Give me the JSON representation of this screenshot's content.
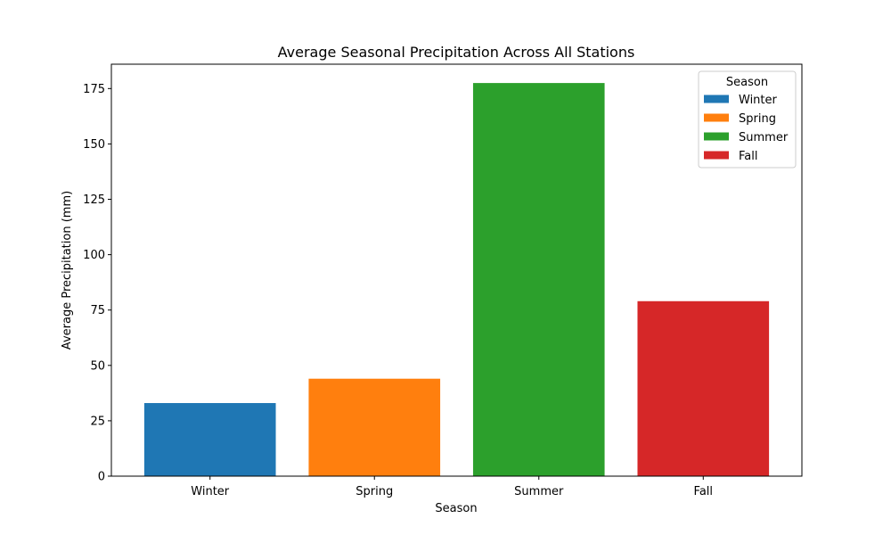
{
  "chart_data": {
    "type": "bar",
    "title": "Average Seasonal Precipitation Across All Stations",
    "xlabel": "Season",
    "ylabel": "Average Precipitation (mm)",
    "categories": [
      "Winter",
      "Spring",
      "Summer",
      "Fall"
    ],
    "values": [
      33,
      44,
      177.5,
      79
    ],
    "colors": [
      "#1f77b4",
      "#ff7f0e",
      "#2ca02c",
      "#d62728"
    ],
    "ylim": [
      0,
      186
    ],
    "yticks": [
      0,
      25,
      50,
      75,
      100,
      125,
      150,
      175
    ],
    "grid": false,
    "legend": {
      "title": "Season",
      "placement": "top-right",
      "entries": [
        "Winter",
        "Spring",
        "Summer",
        "Fall"
      ]
    }
  }
}
